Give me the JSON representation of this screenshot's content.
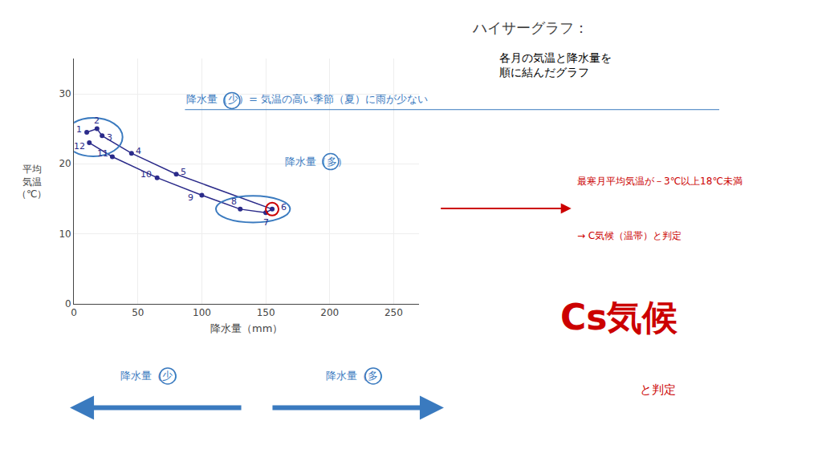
{
  "chart_data": {
    "type": "line",
    "title": "ハイサーグラフ：",
    "subtitle": "各月の気温と降水量を\n順に結んだグラフ",
    "xlabel": "降水量（mm）",
    "ylabel": "平均\n気温\n（℃）",
    "x": [
      10,
      18,
      22,
      45,
      80,
      155,
      150,
      130,
      100,
      65,
      30,
      12
    ],
    "values": [
      24.5,
      25.0,
      24.0,
      21.5,
      18.5,
      13.5,
      13.0,
      13.5,
      15.5,
      18.0,
      21.0,
      23.0
    ],
    "labels": [
      "1",
      "2",
      "3",
      "4",
      "5",
      "6",
      "7",
      "8",
      "9",
      "10",
      "11",
      "12"
    ],
    "color": "#2b2b8a",
    "xlim": [
      0,
      270
    ],
    "ylim": [
      0,
      35
    ],
    "xticks": [
      0,
      50,
      100,
      150,
      200,
      250
    ],
    "yticks": [
      0,
      10,
      20,
      30
    ],
    "grid": true,
    "annotations": [
      {
        "text": "降水量（少）= 気温の高い季節（夏）に雨が少ない",
        "color": "#3a7abf"
      },
      {
        "text": "降水量（多）",
        "color": "#3a7abf"
      },
      {
        "text": "最寒月平均気温が－3℃以上18℃未満",
        "color": "#cc0000"
      },
      {
        "text": "→ C気候（温帯）と判定",
        "color": "#cc0000"
      },
      {
        "text": "降水量（少）",
        "color": "#3a7abf"
      },
      {
        "text": "降水量（多）",
        "color": "#3a7abf"
      },
      {
        "text": "Cs気候",
        "color": "#cc0000"
      },
      {
        "text": "と判定",
        "color": "#cc0000"
      }
    ]
  }
}
